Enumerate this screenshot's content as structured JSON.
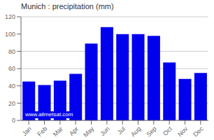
{
  "chart_data": {
    "type": "bar",
    "title": "Munich : precipitation (mm)",
    "categories": [
      "Jan",
      "Feb",
      "Mar",
      "Apr",
      "May",
      "Jun",
      "Jul",
      "Aug",
      "Sep",
      "Oct",
      "Nov",
      "Dec"
    ],
    "values": [
      45,
      41,
      46,
      54,
      89,
      108,
      100,
      100,
      98,
      67,
      48,
      55
    ],
    "color": "#0000ee",
    "ylim": [
      0,
      120
    ],
    "yticks": [
      0,
      20,
      40,
      60,
      80,
      100,
      120
    ],
    "grid": true,
    "annotations": [
      "www.allmetsat.com"
    ]
  }
}
